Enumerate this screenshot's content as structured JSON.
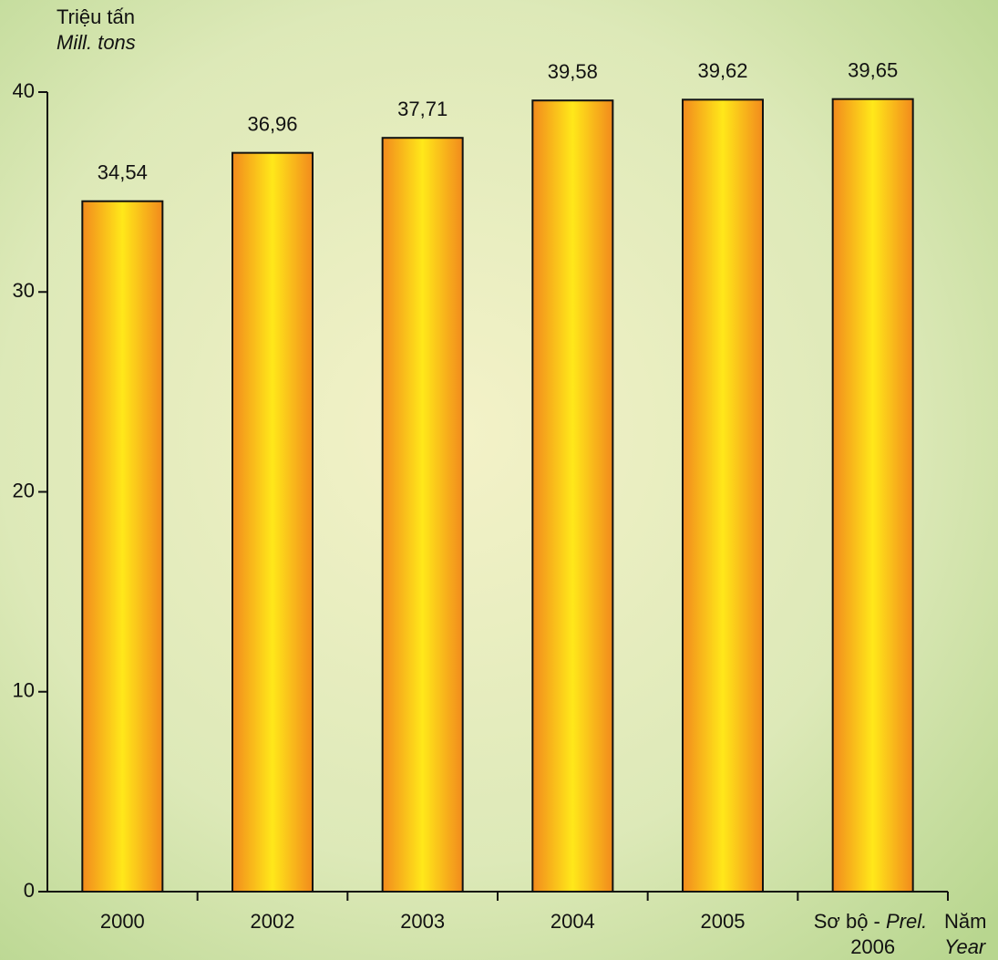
{
  "chart_data": {
    "type": "bar",
    "y_axis_label": "Triệu tấn",
    "y_axis_label_en": "Mill. tons",
    "x_axis_label": "Năm",
    "x_axis_label_en": "Year",
    "prelim_label": "Sơ bộ -",
    "prelim_label_en": "Prel.",
    "categories": [
      "2000",
      "2002",
      "2003",
      "2004",
      "2005",
      "2006"
    ],
    "values": [
      34.54,
      36.96,
      37.71,
      39.58,
      39.62,
      39.65
    ],
    "value_labels": [
      "34,54",
      "36,96",
      "37,71",
      "39,58",
      "39,62",
      "39,65"
    ],
    "color": "#f28a1c",
    "ylim": [
      0,
      40
    ],
    "yticks": [
      0,
      10,
      20,
      30,
      40
    ]
  }
}
